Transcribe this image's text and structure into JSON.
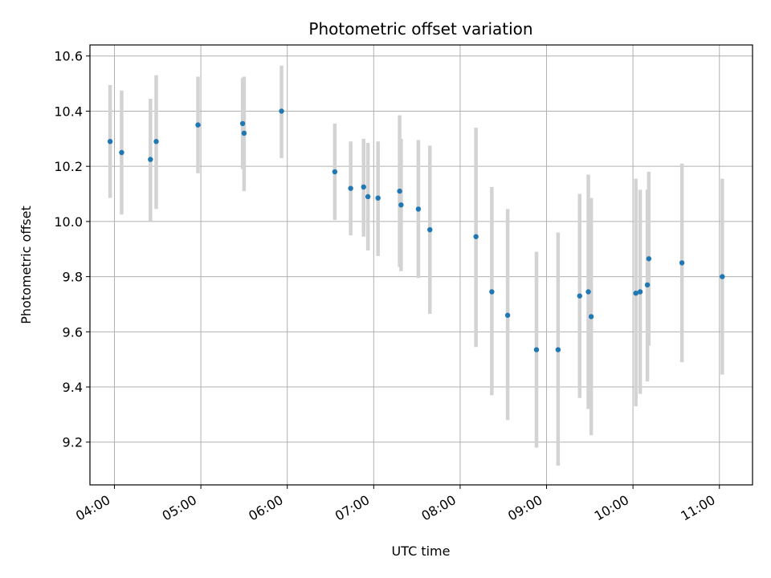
{
  "chart_data": {
    "type": "scatter",
    "title": "Photometric offset variation",
    "xlabel": "UTC time",
    "ylabel": "Photometric offset",
    "x_ticks": [
      "04:00",
      "05:00",
      "06:00",
      "07:00",
      "08:00",
      "09:00",
      "10:00",
      "11:00"
    ],
    "y_ticks": [
      "9.2",
      "9.4",
      "9.6",
      "9.8",
      "10.0",
      "10.2",
      "10.4",
      "10.6"
    ],
    "xlim": [
      "03:43",
      "11:23"
    ],
    "ylim": [
      9.045,
      10.64
    ],
    "grid": true,
    "colors": {
      "point": "#1f77b4",
      "errorbar": "#d3d3d3",
      "grid": "#b0b0b0"
    },
    "series": [
      {
        "points": [
          {
            "x": "03:57",
            "y": 10.29,
            "ymin": 10.085,
            "ymax": 10.495
          },
          {
            "x": "04:05",
            "y": 10.25,
            "ymin": 10.025,
            "ymax": 10.475
          },
          {
            "x": "04:25",
            "y": 10.225,
            "ymin": 10.0,
            "ymax": 10.445
          },
          {
            "x": "04:29",
            "y": 10.29,
            "ymin": 10.045,
            "ymax": 10.53
          },
          {
            "x": "04:58",
            "y": 10.35,
            "ymin": 10.175,
            "ymax": 10.525
          },
          {
            "x": "05:29",
            "y": 10.355,
            "ymin": 10.19,
            "ymax": 10.52
          },
          {
            "x": "05:30",
            "y": 10.32,
            "ymin": 10.11,
            "ymax": 10.525
          },
          {
            "x": "05:56",
            "y": 10.4,
            "ymin": 10.23,
            "ymax": 10.565
          },
          {
            "x": "06:33",
            "y": 10.18,
            "ymin": 10.005,
            "ymax": 10.355
          },
          {
            "x": "06:44",
            "y": 10.12,
            "ymin": 9.95,
            "ymax": 10.29
          },
          {
            "x": "06:53",
            "y": 10.125,
            "ymin": 9.945,
            "ymax": 10.3
          },
          {
            "x": "06:56",
            "y": 10.09,
            "ymin": 9.895,
            "ymax": 10.285
          },
          {
            "x": "07:03",
            "y": 10.085,
            "ymin": 9.875,
            "ymax": 10.29
          },
          {
            "x": "07:18",
            "y": 10.11,
            "ymin": 9.835,
            "ymax": 10.385
          },
          {
            "x": "07:19",
            "y": 10.06,
            "ymin": 9.82,
            "ymax": 10.3
          },
          {
            "x": "07:31",
            "y": 10.045,
            "ymin": 9.795,
            "ymax": 10.295
          },
          {
            "x": "07:39",
            "y": 9.97,
            "ymin": 9.665,
            "ymax": 10.275
          },
          {
            "x": "08:11",
            "y": 9.945,
            "ymin": 9.545,
            "ymax": 10.34
          },
          {
            "x": "08:22",
            "y": 9.745,
            "ymin": 9.37,
            "ymax": 10.125
          },
          {
            "x": "08:33",
            "y": 9.66,
            "ymin": 9.28,
            "ymax": 10.045
          },
          {
            "x": "08:53",
            "y": 9.535,
            "ymin": 9.18,
            "ymax": 9.89
          },
          {
            "x": "09:08",
            "y": 9.535,
            "ymin": 9.115,
            "ymax": 9.96
          },
          {
            "x": "09:23",
            "y": 9.73,
            "ymin": 9.36,
            "ymax": 10.1
          },
          {
            "x": "09:29",
            "y": 9.745,
            "ymin": 9.32,
            "ymax": 10.17
          },
          {
            "x": "09:31",
            "y": 9.655,
            "ymin": 9.225,
            "ymax": 10.085
          },
          {
            "x": "10:02",
            "y": 9.74,
            "ymin": 9.33,
            "ymax": 10.155
          },
          {
            "x": "10:05",
            "y": 9.745,
            "ymin": 9.375,
            "ymax": 10.115
          },
          {
            "x": "10:10",
            "y": 9.77,
            "ymin": 9.42,
            "ymax": 10.115
          },
          {
            "x": "10:11",
            "y": 9.865,
            "ymin": 9.55,
            "ymax": 10.18
          },
          {
            "x": "10:34",
            "y": 9.85,
            "ymin": 9.49,
            "ymax": 10.21
          },
          {
            "x": "11:02",
            "y": 9.8,
            "ymin": 9.445,
            "ymax": 10.155
          }
        ]
      }
    ]
  }
}
